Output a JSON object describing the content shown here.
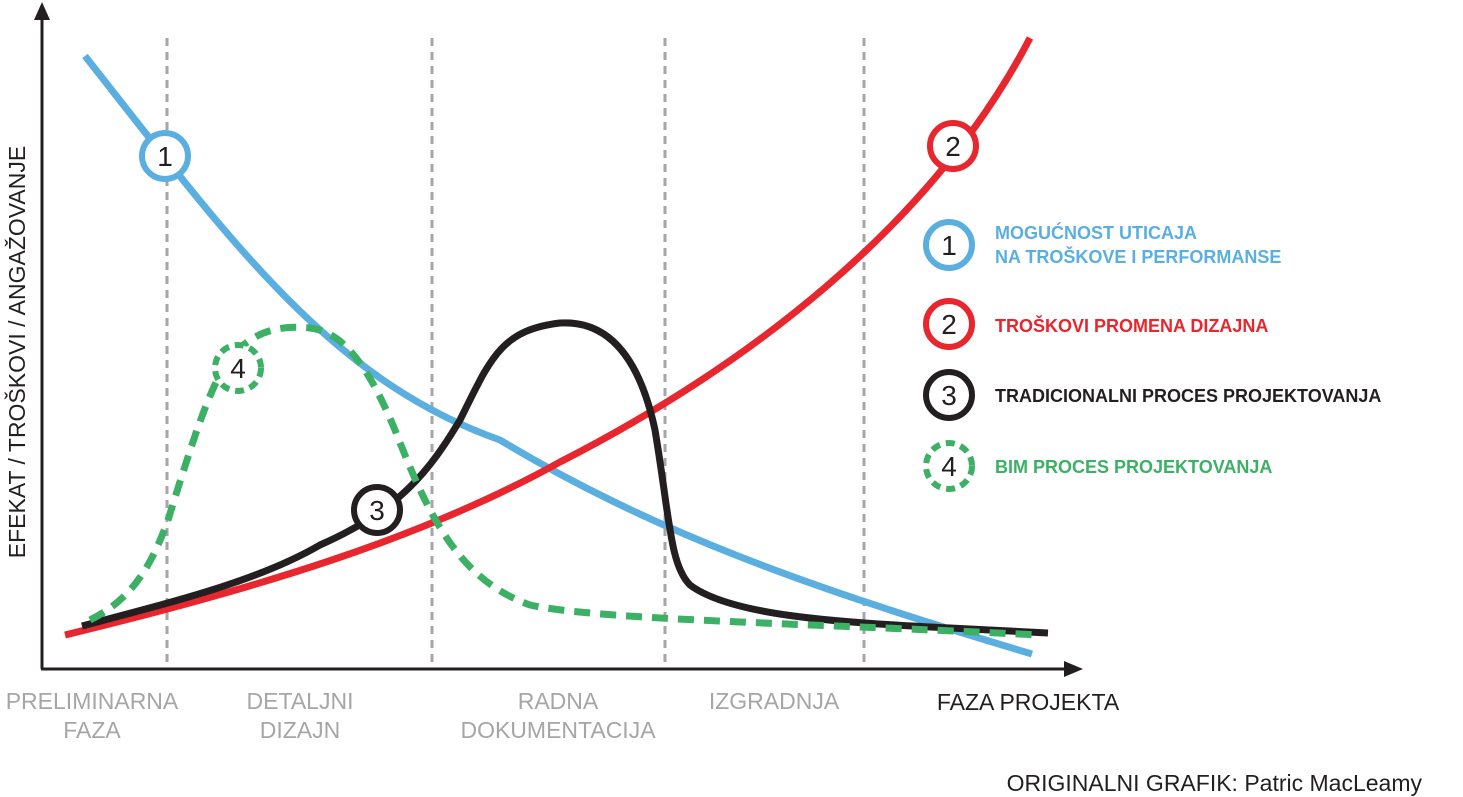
{
  "axes": {
    "y_label": "EFEKAT / TROŠKOVI / ANGAŽOVANJE",
    "x_label": "FAZA PROJEKTA"
  },
  "phases": [
    {
      "line1": "PRELIMINARNA",
      "line2": "FAZA"
    },
    {
      "line1": "DETALJNI",
      "line2": "DIZAJN"
    },
    {
      "line1": "RADNA",
      "line2": "DOKUMENTACIJA"
    },
    {
      "line1": "IZGRADNJA",
      "line2": ""
    }
  ],
  "curves": [
    {
      "id": "1",
      "color": "#5aafe0",
      "style": "solid"
    },
    {
      "id": "2",
      "color": "#e8262d",
      "style": "solid"
    },
    {
      "id": "3",
      "color": "#231f20",
      "style": "solid"
    },
    {
      "id": "4",
      "color": "#3cb064",
      "style": "dashed"
    }
  ],
  "markers": [
    "1",
    "2",
    "3",
    "4"
  ],
  "legend": [
    {
      "num": "1",
      "line1": "MOGUĆNOST UTICAJA",
      "line2": "NA TROŠKOVE I PERFORMANSE",
      "color": "#5aafe0"
    },
    {
      "num": "2",
      "line1": "TROŠKOVI PROMENA DIZAJNA",
      "line2": "",
      "color": "#e8262d"
    },
    {
      "num": "3",
      "line1": "TRADICIONALNI PROCES PROJEKTOVANJA",
      "line2": "",
      "color": "#231f20"
    },
    {
      "num": "4",
      "line1": "BIM PROCES PROJEKTOVANJA",
      "line2": "",
      "color": "#3cb064"
    }
  ],
  "credit": "ORIGINALNI GRAFIK: Patric MacLeamy"
}
